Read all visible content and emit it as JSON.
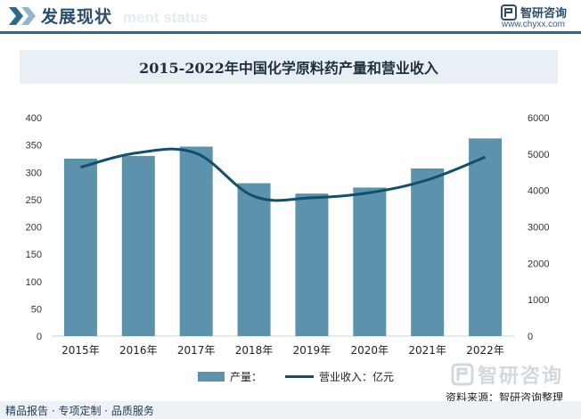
{
  "header": {
    "title": "发展现状",
    "ghost_text": "ment status",
    "brand_name": "智研咨询",
    "brand_url": "www.chyxx.com"
  },
  "chart_data": {
    "type": "bar",
    "title": "2015-2022年中国化学原料药产量和营业收入",
    "categories": [
      "2015年",
      "2016年",
      "2017年",
      "2018年",
      "2019年",
      "2020年",
      "2021年",
      "2022年"
    ],
    "series": [
      {
        "name": "产量：",
        "kind": "bar",
        "axis": "left",
        "values": [
          325,
          330,
          347,
          280,
          261,
          272,
          307,
          362
        ]
      },
      {
        "name": "营业收入：亿元",
        "kind": "line",
        "axis": "right",
        "values": [
          4640,
          5040,
          5020,
          3840,
          3800,
          3940,
          4290,
          4920
        ]
      }
    ],
    "ylim_left": [
      0,
      400
    ],
    "yticks_left": [
      0,
      50,
      100,
      150,
      200,
      250,
      300,
      350,
      400
    ],
    "ylim_right": [
      0,
      6000
    ],
    "yticks_right": [
      0,
      1000,
      2000,
      3000,
      4000,
      5000,
      6000
    ],
    "grid": false,
    "legend_position": "bottom-center",
    "colors": {
      "bar": "#5c92ab",
      "line": "#10506c"
    }
  },
  "source": "资料来源：智研咨询整理",
  "footer": {
    "tagline": "精品报告 · 专项定制 · 品质服务",
    "logo_text": "智研咨询"
  }
}
